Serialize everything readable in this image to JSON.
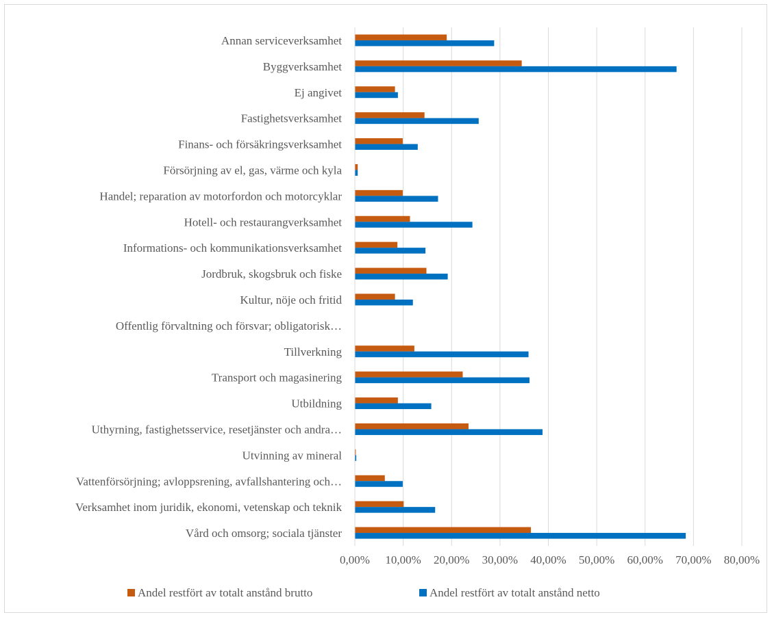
{
  "chart_data": {
    "type": "bar",
    "orientation": "horizontal",
    "categories": [
      "Annan serviceverksamhet",
      "Byggverksamhet",
      "Ej angivet",
      "Fastighetsverksamhet",
      "Finans- och försäkringsverksamhet",
      "Försörjning av el, gas, värme och kyla",
      "Handel; reparation av motorfordon och motorcyklar",
      "Hotell- och restaurangverksamhet",
      "Informations- och kommunikationsverksamhet",
      "Jordbruk, skogsbruk och fiske",
      "Kultur, nöje och fritid",
      "Offentlig förvaltning och försvar; obligatorisk…",
      "Tillverkning",
      "Transport och magasinering",
      "Utbildning",
      "Uthyrning, fastighetsservice, resetjänster och andra…",
      "Utvinning av mineral",
      "Vattenförsörjning; avloppsrening, avfallshantering och…",
      "Verksamhet inom juridik, ekonomi, vetenskap och teknik",
      "Vård och omsorg; sociala tjänster"
    ],
    "series": [
      {
        "name": "Andel restfört av totalt anstånd brutto",
        "color": "#C55A11",
        "values": [
          19.0,
          34.5,
          8.3,
          14.4,
          9.9,
          0.6,
          9.9,
          11.4,
          8.8,
          14.8,
          8.3,
          0,
          12.3,
          22.3,
          8.9,
          23.5,
          0.2,
          6.2,
          10.1,
          36.4
        ]
      },
      {
        "name": "Andel restfört av totalt anstånd netto",
        "color": "#0070C0",
        "values": [
          28.8,
          66.5,
          8.9,
          25.6,
          13.0,
          0.6,
          17.2,
          24.3,
          14.6,
          19.2,
          12.0,
          0,
          35.9,
          36.1,
          15.8,
          38.8,
          0.3,
          9.9,
          16.6,
          68.4
        ]
      }
    ],
    "x_ticks": [
      "0,00%",
      "10,00%",
      "20,00%",
      "30,00%",
      "40,00%",
      "50,00%",
      "60,00%",
      "70,00%",
      "80,00%"
    ],
    "xlim": [
      0,
      80
    ],
    "grid": true,
    "legend_position": "bottom"
  }
}
